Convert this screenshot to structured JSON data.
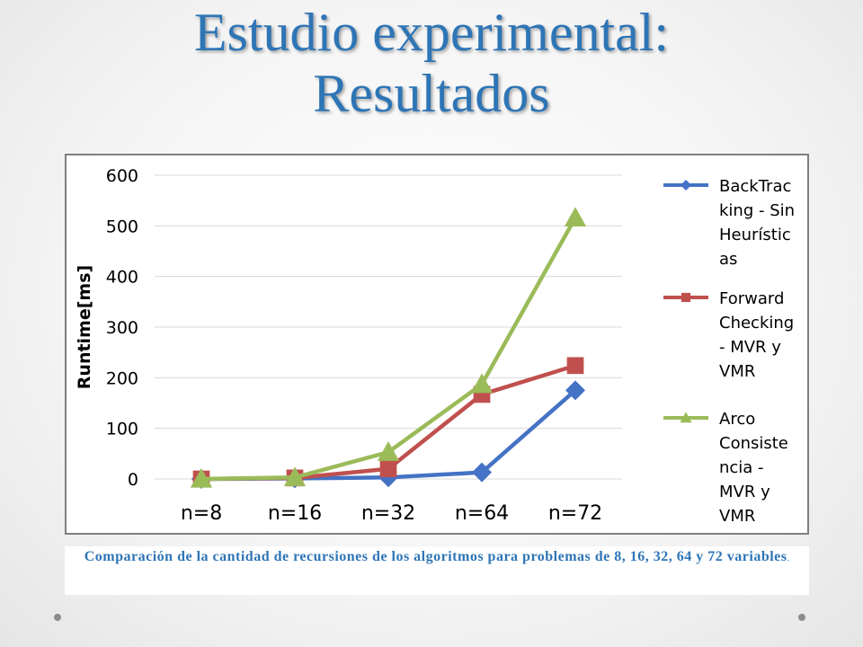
{
  "slide": {
    "title_line1": "Estudio experimental:",
    "title_line2": "Resultados",
    "caption_main": "Comparación de la cantidad de recursiones de los algoritmos para problemas de 8, 16, 32, 64  y 72 variables",
    "caption_tail": "."
  },
  "colors": {
    "title": "#2e75b6",
    "series": [
      "#4472c4",
      "#c0504d",
      "#9bbb59"
    ]
  },
  "chart_data": {
    "type": "line",
    "title": "",
    "xlabel": "",
    "ylabel": "Runtime[ms]",
    "categories": [
      "n=8",
      "n=16",
      "n=32",
      "n=64",
      "n=72"
    ],
    "ylim": [
      0,
      600
    ],
    "yticks": [
      0,
      100,
      200,
      300,
      400,
      500,
      600
    ],
    "grid": true,
    "legend_position": "right",
    "series": [
      {
        "name": "BackTracking - Sin Heurísticas",
        "legend_lines": [
          "BackTrac",
          "king - Sin",
          "Heurístic",
          "as"
        ],
        "marker": "diamond",
        "color": "#4472c4",
        "values": [
          0,
          1,
          3,
          13,
          175
        ]
      },
      {
        "name": "Forward Checking - MVR y VMR",
        "legend_lines": [
          "Forward",
          "Checking",
          "- MVR y",
          "VMR"
        ],
        "marker": "square",
        "color": "#c0504d",
        "values": [
          0,
          2,
          20,
          167,
          224
        ]
      },
      {
        "name": "Arco Consistencia - MVR y VMR",
        "legend_lines": [
          "Arco",
          "Consiste",
          "ncia -",
          "MVR y",
          "VMR"
        ],
        "marker": "triangle",
        "color": "#9bbb59",
        "values": [
          0,
          3,
          53,
          187,
          516
        ]
      }
    ]
  }
}
